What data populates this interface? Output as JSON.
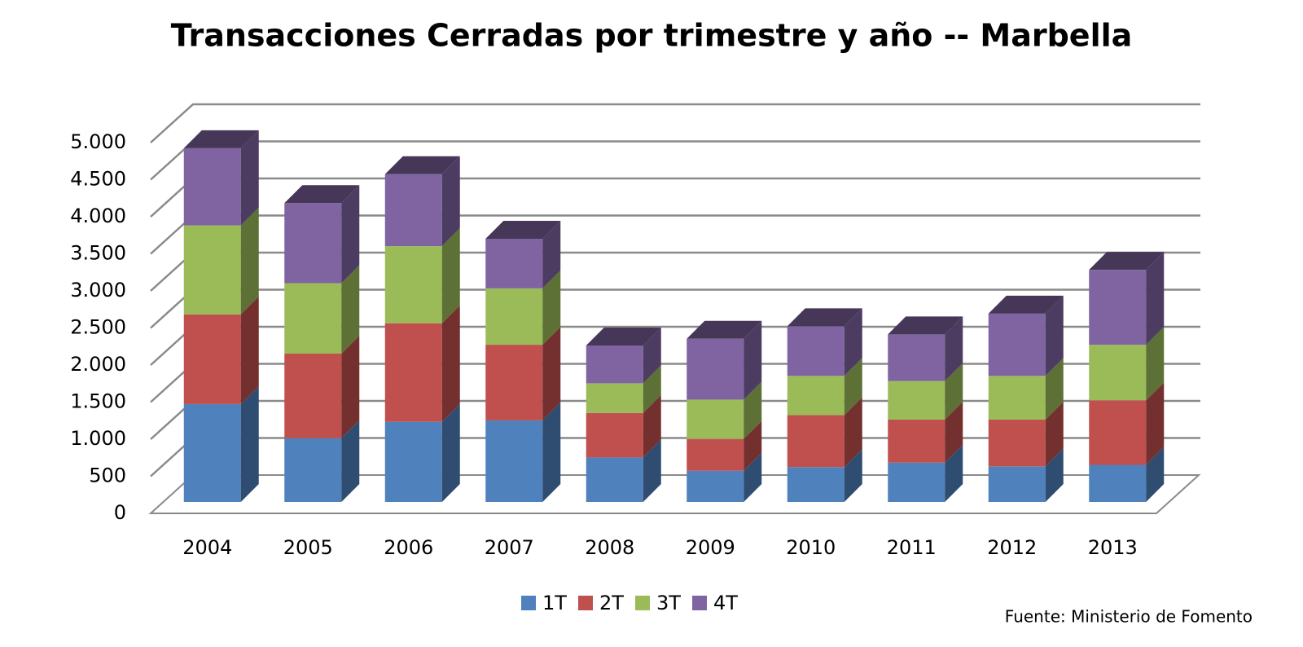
{
  "chart_data": {
    "type": "bar3d_stacked",
    "title": "Transacciones Cerradas por trimestre y año -- Marbella",
    "source": "Fuente: Ministerio de Fomento",
    "categories": [
      "2004",
      "2005",
      "2006",
      "2007",
      "2008",
      "2009",
      "2010",
      "2011",
      "2012",
      "2013"
    ],
    "series": [
      {
        "name": "1T",
        "color": "#4f81bd",
        "values": [
          1320,
          860,
          1080,
          1100,
          600,
          420,
          470,
          530,
          480,
          500
        ]
      },
      {
        "name": "2T",
        "color": "#c0504d",
        "values": [
          1210,
          1140,
          1330,
          1020,
          600,
          430,
          700,
          580,
          630,
          870
        ]
      },
      {
        "name": "3T",
        "color": "#9bbb59",
        "values": [
          1200,
          950,
          1040,
          760,
          400,
          530,
          530,
          520,
          590,
          750
        ]
      },
      {
        "name": "4T",
        "color": "#8064a2",
        "values": [
          1040,
          1080,
          970,
          670,
          510,
          820,
          670,
          630,
          840,
          1010
        ]
      }
    ],
    "ylim": [
      0,
      5000
    ],
    "yticks": [
      0,
      500,
      {
        "value": 1000,
        "label": "1.000"
      },
      {
        "value": 1500,
        "label": "1.500"
      },
      {
        "value": 2000,
        "label": "2.000"
      },
      {
        "value": 2500,
        "label": "2.500"
      },
      {
        "value": 3000,
        "label": "3.000"
      },
      {
        "value": 3500,
        "label": "3.500"
      },
      {
        "value": 4000,
        "label": "4.000"
      },
      {
        "value": 4500,
        "label": "4.500"
      },
      {
        "value": 5000,
        "label": "5.000"
      }
    ],
    "grid": true,
    "legend": "bottom"
  }
}
